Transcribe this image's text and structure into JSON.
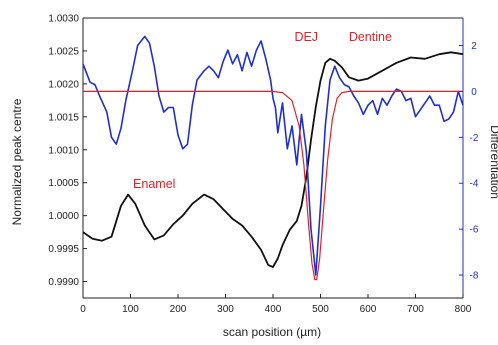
{
  "chart_data": {
    "type": "line",
    "xlabel": "scan position (µm)",
    "ylabel": "Normalized peak centre",
    "ylabel_right": "Differentiation",
    "xlim": [
      0,
      800
    ],
    "ylim": [
      0.99875,
      1.003
    ],
    "ylim_right": [
      -9,
      3.2
    ],
    "x_ticks": [
      "0",
      "100",
      "200",
      "300",
      "400",
      "500",
      "600",
      "700",
      "800"
    ],
    "y_ticks": [
      "0.9990",
      "0.9995",
      "1.0000",
      "1.0005",
      "1.0010",
      "1.0015",
      "1.0020",
      "1.0025",
      "1.0030"
    ],
    "y_ticks_right": [
      "-8",
      "-6",
      "-4",
      "-2",
      "0",
      "2"
    ],
    "annotations": [
      {
        "text": "Enamel",
        "x": 150,
        "y": 1.00042
      },
      {
        "text": "DEJ",
        "x": 470,
        "y": 1.00265
      },
      {
        "text": "Dentine",
        "x": 605,
        "y": 1.00265
      }
    ],
    "colors": {
      "normalized": "#111111",
      "differentiation": "#1f2fd8",
      "fit": "#e8202a",
      "right_axis": "#1f2fd8"
    },
    "series": [
      {
        "axis": "left",
        "x": [
          0,
          20,
          40,
          60,
          80,
          95,
          110,
          130,
          150,
          170,
          190,
          210,
          230,
          255,
          275,
          295,
          315,
          335,
          355,
          375,
          390,
          400,
          410,
          420,
          435,
          450,
          460,
          470,
          480,
          490,
          500,
          510,
          520,
          530,
          545,
          560,
          580,
          600,
          630,
          660,
          690,
          720,
          750,
          775,
          800
        ],
        "y": [
          0.99975,
          0.99965,
          0.99962,
          0.99968,
          1.00015,
          1.00032,
          1.00018,
          0.99985,
          0.99964,
          0.9997,
          0.99987,
          1.0,
          1.00018,
          1.00032,
          1.00025,
          1.0001,
          0.99995,
          0.99985,
          0.99968,
          0.99948,
          0.99925,
          0.99922,
          0.99935,
          0.99955,
          0.99978,
          0.99992,
          1.00015,
          1.00058,
          1.00115,
          1.00165,
          1.00205,
          1.00232,
          1.00238,
          1.00235,
          1.00225,
          1.0021,
          1.00205,
          1.00208,
          1.0022,
          1.00232,
          1.0024,
          1.00238,
          1.00245,
          1.00248,
          1.00245
        ]
      },
      {
        "axis": "right",
        "x": [
          0,
          15,
          25,
          35,
          50,
          60,
          70,
          80,
          90,
          105,
          115,
          130,
          140,
          150,
          160,
          170,
          180,
          190,
          200,
          210,
          220,
          230,
          240,
          255,
          265,
          275,
          285,
          295,
          305,
          315,
          325,
          335,
          345,
          355,
          365,
          375,
          385,
          395,
          400,
          405,
          410,
          420,
          430,
          440,
          450,
          460,
          470,
          480,
          490,
          500,
          510,
          520,
          530,
          540,
          550,
          560,
          570,
          580,
          590,
          600,
          610,
          620,
          630,
          640,
          650,
          660,
          670,
          680,
          690,
          700,
          710,
          720,
          730,
          740,
          750,
          760,
          770,
          780,
          790,
          800
        ],
        "y": [
          1.2,
          0.4,
          0.3,
          -0.2,
          -0.9,
          -2.0,
          -2.3,
          -1.6,
          -0.4,
          1.0,
          2.0,
          2.4,
          2.1,
          1.1,
          -0.2,
          -0.9,
          -0.7,
          -0.7,
          -1.9,
          -2.5,
          -2.3,
          -0.6,
          0.5,
          0.9,
          1.1,
          0.9,
          0.6,
          1.3,
          1.8,
          1.2,
          1.6,
          0.9,
          1.7,
          1.1,
          1.8,
          2.2,
          1.4,
          0.5,
          -0.3,
          -0.7,
          -1.8,
          -0.5,
          -2.5,
          -1.5,
          -3.2,
          -1.0,
          -2.6,
          -6.0,
          -8.0,
          -5.0,
          -1.5,
          0.5,
          1.1,
          0.6,
          0.3,
          0.2,
          -0.2,
          -0.5,
          -1.0,
          -0.6,
          -0.4,
          -1.0,
          -0.3,
          -0.6,
          -0.2,
          0.1,
          0.0,
          -0.4,
          -0.3,
          -1.1,
          -0.8,
          -0.5,
          -0.2,
          -0.6,
          -0.6,
          -1.3,
          -1.2,
          -0.9,
          0.0,
          -0.6
        ]
      },
      {
        "axis": "right",
        "x": [
          0,
          100,
          200,
          300,
          400,
          420,
          440,
          455,
          465,
          475,
          482,
          488,
          492,
          498,
          505,
          515,
          525,
          535,
          545,
          560,
          600,
          700,
          800
        ],
        "y": [
          0,
          0,
          0,
          0,
          0,
          -0.05,
          -0.4,
          -1.5,
          -3.2,
          -5.8,
          -7.5,
          -8.2,
          -8.2,
          -7.3,
          -5.5,
          -3.0,
          -1.2,
          -0.3,
          -0.05,
          0,
          0,
          0,
          0
        ]
      }
    ]
  }
}
